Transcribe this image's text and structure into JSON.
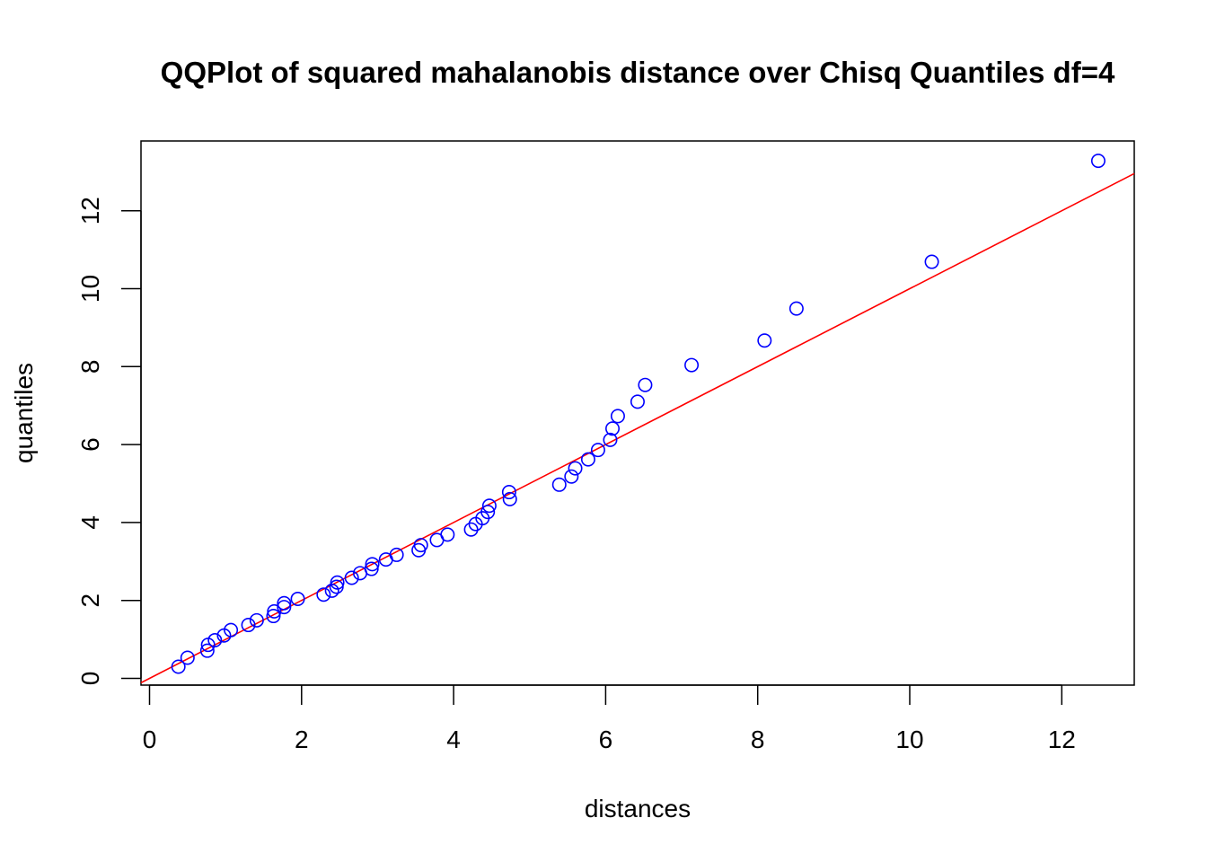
{
  "chart_data": {
    "type": "scatter",
    "title": "QQPlot of squared mahalanobis distance over Chisq Quantiles df=4",
    "xlabel": "distances",
    "ylabel": "quantiles",
    "xlim": [
      -0.2,
      13.0
    ],
    "ylim": [
      -0.2,
      13.8
    ],
    "x_ticks": [
      0,
      2,
      4,
      6,
      8,
      10,
      12
    ],
    "y_ticks": [
      0,
      2,
      4,
      6,
      8,
      10,
      12
    ],
    "grid": false,
    "point_style": "open-circle",
    "point_color": "#0000ff",
    "reference_line": {
      "intercept": 0.0,
      "slope": 1.0,
      "color": "#ff0000"
    },
    "points": [
      {
        "x": 0.38,
        "y": 0.3
      },
      {
        "x": 0.5,
        "y": 0.53
      },
      {
        "x": 0.76,
        "y": 0.71
      },
      {
        "x": 0.77,
        "y": 0.86
      },
      {
        "x": 0.86,
        "y": 0.98
      },
      {
        "x": 0.98,
        "y": 1.1
      },
      {
        "x": 1.07,
        "y": 1.24
      },
      {
        "x": 1.3,
        "y": 1.37
      },
      {
        "x": 1.41,
        "y": 1.49
      },
      {
        "x": 1.63,
        "y": 1.6
      },
      {
        "x": 1.64,
        "y": 1.72
      },
      {
        "x": 1.77,
        "y": 1.83
      },
      {
        "x": 1.77,
        "y": 1.93
      },
      {
        "x": 1.95,
        "y": 2.04
      },
      {
        "x": 2.29,
        "y": 2.15
      },
      {
        "x": 2.4,
        "y": 2.25
      },
      {
        "x": 2.46,
        "y": 2.35
      },
      {
        "x": 2.47,
        "y": 2.46
      },
      {
        "x": 2.66,
        "y": 2.58
      },
      {
        "x": 2.77,
        "y": 2.7
      },
      {
        "x": 2.92,
        "y": 2.81
      },
      {
        "x": 2.93,
        "y": 2.93
      },
      {
        "x": 3.11,
        "y": 3.05
      },
      {
        "x": 3.25,
        "y": 3.17
      },
      {
        "x": 3.54,
        "y": 3.29
      },
      {
        "x": 3.57,
        "y": 3.42
      },
      {
        "x": 3.78,
        "y": 3.55
      },
      {
        "x": 3.92,
        "y": 3.69
      },
      {
        "x": 4.23,
        "y": 3.82
      },
      {
        "x": 4.29,
        "y": 3.96
      },
      {
        "x": 4.38,
        "y": 4.11
      },
      {
        "x": 4.45,
        "y": 4.27
      },
      {
        "x": 4.47,
        "y": 4.43
      },
      {
        "x": 4.74,
        "y": 4.6
      },
      {
        "x": 4.73,
        "y": 4.78
      },
      {
        "x": 5.39,
        "y": 4.97
      },
      {
        "x": 5.55,
        "y": 5.18
      },
      {
        "x": 5.6,
        "y": 5.39
      },
      {
        "x": 5.77,
        "y": 5.62
      },
      {
        "x": 5.9,
        "y": 5.86
      },
      {
        "x": 6.06,
        "y": 6.12
      },
      {
        "x": 6.09,
        "y": 6.41
      },
      {
        "x": 6.16,
        "y": 6.73
      },
      {
        "x": 6.42,
        "y": 7.1
      },
      {
        "x": 6.52,
        "y": 7.53
      },
      {
        "x": 7.13,
        "y": 8.04
      },
      {
        "x": 8.09,
        "y": 8.67
      },
      {
        "x": 8.51,
        "y": 9.49
      },
      {
        "x": 10.29,
        "y": 10.69
      },
      {
        "x": 12.48,
        "y": 13.28
      }
    ]
  }
}
